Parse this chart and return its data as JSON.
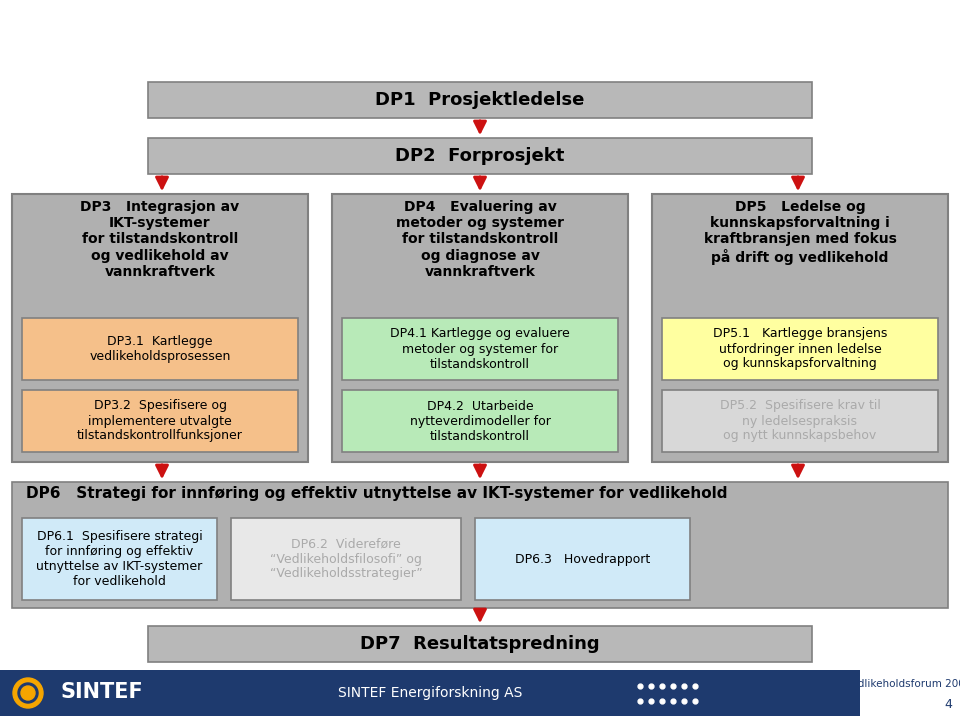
{
  "bg_color": "#ffffff",
  "bar_gray": "#b8b8b8",
  "col_gray": "#b0b0b0",
  "dp1_text": "DP1  Prosjektledelse",
  "dp2_text": "DP2  Forprosjekt",
  "dp7_text": "DP7  Resultatspredning",
  "dp3_header": "DP3   Integrasjon av\nIKT-systemer\nfor tilstandskontroll\nog vedlikehold av\nvannkraftverk",
  "dp4_header": "DP4   Evaluering av\nmetoder og systemer\nfor tilstandskontroll\nog diagnose av\nvannkraftverk",
  "dp5_header": "DP5   Ledelse og\nkunnskapsforvaltning i\nkraftbransjen med fokus\npå drift og vedlikehold",
  "dp3_sub1_text": "DP3.1  Kartlegge\nvedlikeholdsprosessen",
  "dp3_sub1_color": "#f5c08a",
  "dp3_sub2_text": "DP3.2  Spesifisere og\nimplementere utvalgte\ntilstandskontrollfunksjoner",
  "dp3_sub2_color": "#f5c08a",
  "dp4_sub1_text": "DP4.1 Kartlegge og evaluere\nmetoder og systemer for\ntilstandskontroll",
  "dp4_sub1_color": "#b8eab8",
  "dp4_sub2_text": "DP4.2  Utarbeide\nnytteverdimodeller for\ntilstandskontroll",
  "dp4_sub2_color": "#b8eab8",
  "dp5_sub1_text": "DP5.1   Kartlegge bransjens\nutfordringer innen ledelse\nog kunnskapsforvaltning",
  "dp5_sub1_color": "#ffffa0",
  "dp5_sub2_text": "DP5.2  Spesifisere krav til\nny ledelsespraksis\nog nytt kunnskapsbehov",
  "dp5_sub2_color": "#d8d8d8",
  "dp5_sub2_text_color": "#aaaaaa",
  "dp6_header": "DP6   Strategi for innføring og effektiv utnyttelse av IKT-systemer for vedlikehold",
  "dp6_sub1_text": "DP6.1  Spesifisere strategi\nfor innføring og effektiv\nutnyttelse av IKT-systemer\nfor vedlikehold",
  "dp6_sub1_color": "#d0eaf8",
  "dp6_sub2_text": "DP6.2  Videreføre\n“Vedlikeholdsfilosofi” og\n“Vedlikeholdsstrategier”",
  "dp6_sub2_color": "#e8e8e8",
  "dp6_sub2_text_color": "#aaaaaa",
  "dp6_sub3_text": "DP6.3   Hovedrapport",
  "dp6_sub3_color": "#d0eaf8",
  "footer_bar_color": "#1e3a6e",
  "footer_text2": "SINTEF Energiforskning AS",
  "arrow_color": "#cc1111",
  "edge_color": "#808080"
}
